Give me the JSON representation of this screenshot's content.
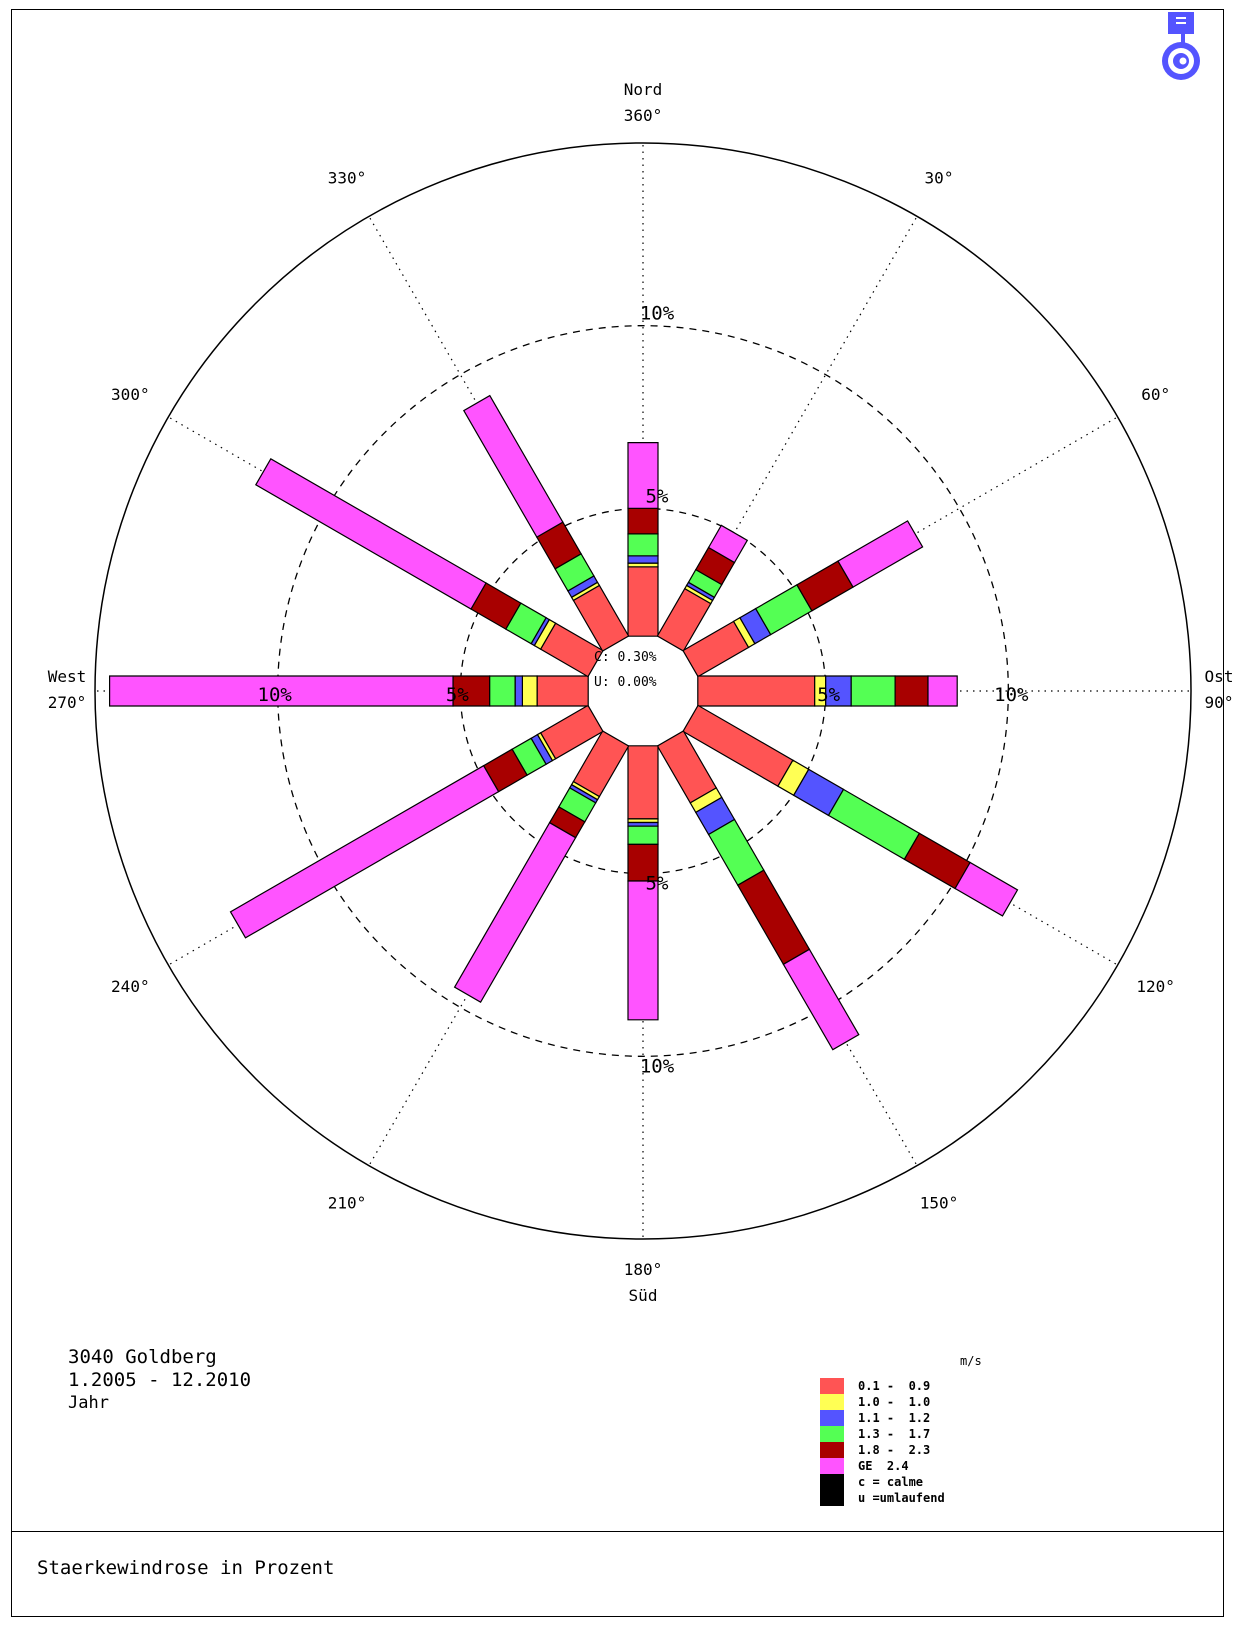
{
  "page": {
    "footer_title": "Staerkewindrose    in Prozent"
  },
  "station": {
    "name": "3040 Goldberg",
    "period": "1.2005 - 12.2010",
    "season": "Jahr"
  },
  "center": {
    "calm": "C: 0.30%",
    "variable": "U: 0.00%"
  },
  "legend": {
    "unit": "m/s",
    "items": [
      {
        "label": "0.1 -  0.9",
        "color": "#ff5454"
      },
      {
        "label": "1.0 -  1.0",
        "color": "#ffff54"
      },
      {
        "label": "1.1 -  1.2",
        "color": "#5454ff"
      },
      {
        "label": "1.3 -  1.7",
        "color": "#54ff54"
      },
      {
        "label": "1.8 -  2.3",
        "color": "#a80000"
      },
      {
        "label": "GE  2.4",
        "color": "#ff54ff"
      },
      {
        "label": "c = calme",
        "color": "#000000"
      },
      {
        "label": "u =umlaufend",
        "color": "#000000"
      }
    ]
  },
  "chart_data": {
    "type": "windrose",
    "title": "Staerkewindrose    in Prozent",
    "unit": "m/s",
    "radial_unit": "%",
    "rings": [
      5,
      10
    ],
    "outer_ring": 15,
    "center_percent": 1.5,
    "ring_labels": [
      "5%",
      "10%"
    ],
    "direction_labels": [
      {
        "angle": 0,
        "lines": [
          "Nord",
          "360°"
        ]
      },
      {
        "angle": 30,
        "lines": [
          "30°"
        ]
      },
      {
        "angle": 60,
        "lines": [
          "60°"
        ]
      },
      {
        "angle": 90,
        "lines": [
          "Ost",
          "90°"
        ]
      },
      {
        "angle": 120,
        "lines": [
          "120°"
        ]
      },
      {
        "angle": 150,
        "lines": [
          "150°"
        ]
      },
      {
        "angle": 180,
        "lines": [
          "180°",
          "Süd"
        ]
      },
      {
        "angle": 210,
        "lines": [
          "210°"
        ]
      },
      {
        "angle": 240,
        "lines": [
          "240°"
        ]
      },
      {
        "angle": 270,
        "lines": [
          "West",
          "270°"
        ]
      },
      {
        "angle": 300,
        "lines": [
          "300°"
        ]
      },
      {
        "angle": 330,
        "lines": [
          "330°"
        ]
      }
    ],
    "speed_classes": [
      "0.1 - 0.9",
      "1.0 - 1.0",
      "1.1 - 1.2",
      "1.3 - 1.7",
      "1.8 - 2.3",
      "GE 2.4"
    ],
    "class_colors": [
      "#ff5454",
      "#ffff54",
      "#5454ff",
      "#54ff54",
      "#a80000",
      "#ff54ff"
    ],
    "directions": [
      0,
      30,
      60,
      90,
      120,
      150,
      180,
      210,
      240,
      270,
      300,
      330
    ],
    "cumulative_percent": [
      [
        1.9,
        2.0,
        2.2,
        2.8,
        3.5,
        5.3
      ],
      [
        1.5,
        1.6,
        1.7,
        2.1,
        2.8,
        3.5
      ],
      [
        1.6,
        1.8,
        2.3,
        3.6,
        4.9,
        7.1
      ],
      [
        3.2,
        3.5,
        4.2,
        5.4,
        6.3,
        7.1
      ],
      [
        3.0,
        3.5,
        4.6,
        7.0,
        8.6,
        10.1
      ],
      [
        1.8,
        2.1,
        2.8,
        4.4,
        6.9,
        9.6
      ],
      [
        2.0,
        2.1,
        2.2,
        2.7,
        3.7,
        7.5
      ],
      [
        1.6,
        1.7,
        1.8,
        2.4,
        2.9,
        8.1
      ],
      [
        1.5,
        1.6,
        1.8,
        2.4,
        3.3,
        11.3
      ],
      [
        1.4,
        1.8,
        2.0,
        2.7,
        3.7,
        13.1
      ],
      [
        1.5,
        1.7,
        1.8,
        2.6,
        3.7,
        10.5
      ],
      [
        1.6,
        1.7,
        1.9,
        2.6,
        3.6,
        7.6
      ]
    ]
  }
}
